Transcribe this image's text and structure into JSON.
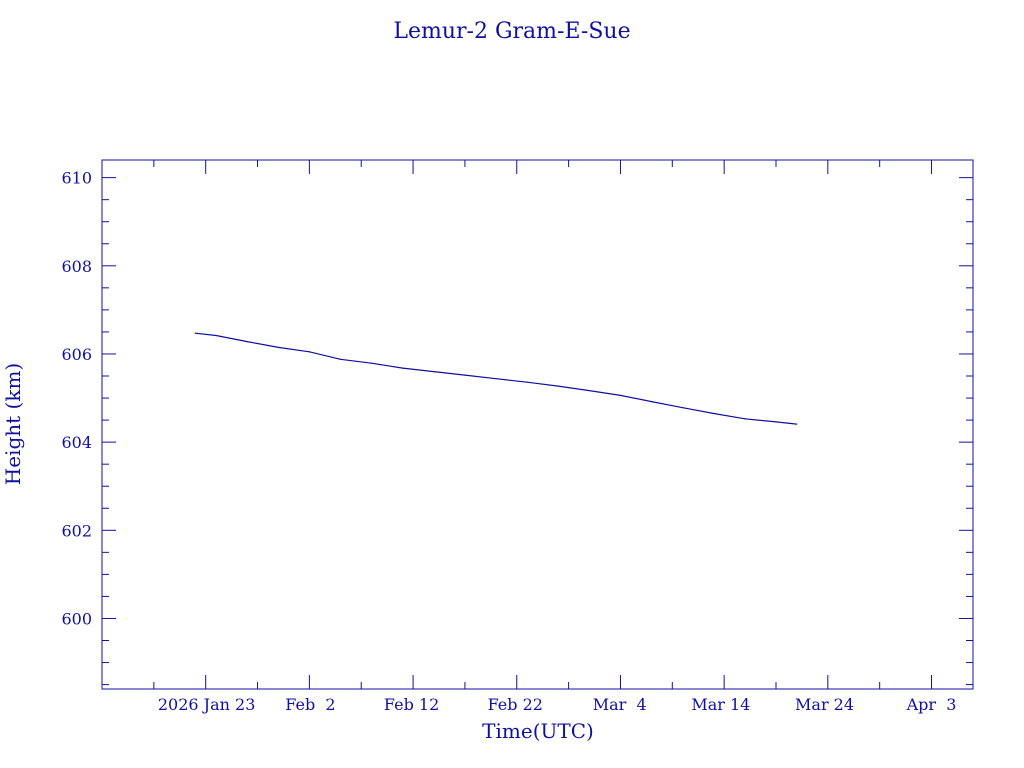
{
  "chart_data": {
    "type": "line",
    "title": "Lemur-2 Gram-E-Sue",
    "xlabel": "Time(UTC)",
    "ylabel": "Height (km)",
    "xlim": [
      "2026-01-13",
      "2026-04-07"
    ],
    "ylim": [
      598.4,
      610.4
    ],
    "x_tick_values": [
      "2026-01-23",
      "2026-02-02",
      "2026-02-12",
      "2026-02-22",
      "2026-03-04",
      "2026-03-14",
      "2026-03-24",
      "2026-04-03"
    ],
    "x_tick_labels": [
      "2026 Jan 23",
      "Feb  2",
      "Feb 12",
      "Feb 22",
      "Mar  4",
      "Mar 14",
      "Mar 24",
      "Apr  3"
    ],
    "y_ticks": [
      600,
      602,
      604,
      606,
      608,
      610
    ],
    "grid": false,
    "color": "#1010a0",
    "series": [
      {
        "x": [
          "2026-01-22",
          "2026-01-24",
          "2026-01-27",
          "2026-01-30",
          "2026-02-02",
          "2026-02-05",
          "2026-02-08",
          "2026-02-11",
          "2026-02-14",
          "2026-02-17",
          "2026-02-20",
          "2026-02-23",
          "2026-02-26",
          "2026-03-01",
          "2026-03-04",
          "2026-03-07",
          "2026-03-10",
          "2026-03-13",
          "2026-03-16",
          "2026-03-19",
          "2026-03-21"
        ],
        "y": [
          606.47,
          606.42,
          606.28,
          606.15,
          606.05,
          605.88,
          605.79,
          605.68,
          605.6,
          605.52,
          605.44,
          605.36,
          605.27,
          605.17,
          605.06,
          604.92,
          604.78,
          604.65,
          604.53,
          604.46,
          604.41
        ]
      }
    ]
  }
}
